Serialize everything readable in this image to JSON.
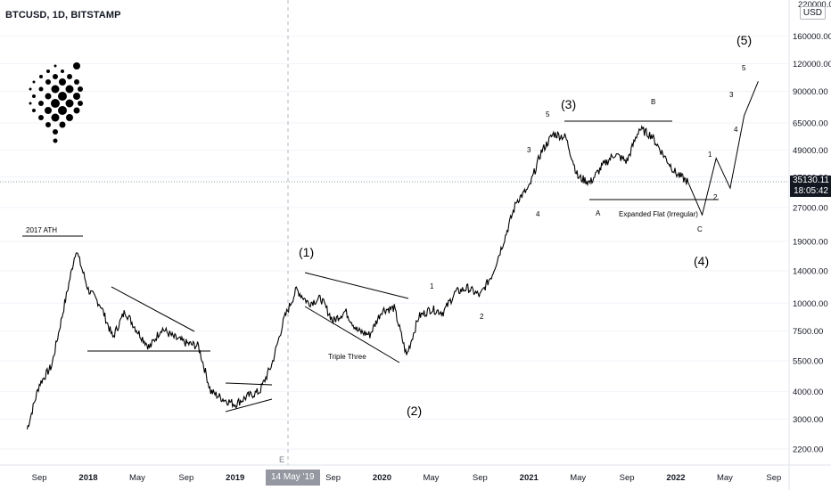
{
  "header": {
    "title": "BTCUSD, 1D, BITSTAMP",
    "currency": "USD"
  },
  "colors": {
    "price_line": "#000000",
    "grid": "#f0f3fa",
    "axis_text": "#131722",
    "tag_bg": "#131722",
    "crosshair": "#9598a1"
  },
  "price_axis": {
    "scale": "log",
    "top_clipped_label": "220000.00",
    "labels": [
      "160000.00",
      "120000.00",
      "90000.00",
      "65000.00",
      "49000.00",
      "37000.00",
      "27000.00",
      "19000.00",
      "14000.00",
      "10000.00",
      "7500.00",
      "5500.00",
      "4000.00",
      "3000.00",
      "2200.00"
    ],
    "current_price": "35130.11",
    "countdown": "18:05:42"
  },
  "time_axis": {
    "labels": [
      "Sep",
      "2018",
      "May",
      "Sep",
      "2019",
      "May",
      "Sep",
      "2020",
      "May",
      "Sep",
      "2021",
      "May",
      "Sep",
      "2022",
      "May",
      "Sep"
    ],
    "crosshair_date": "14 May '19",
    "event_marker": "E"
  },
  "annotations": {
    "ath": "2017 ATH",
    "wave1_major": "(1)",
    "wave2_major": "(2)",
    "wave3_major": "(3)",
    "wave4_major": "(4)",
    "wave5_major": "(5)",
    "triple_three": "Triple Three",
    "expanded_flat": "Expanded Flat (Irregular)",
    "sub1": "1",
    "sub2": "2",
    "sub4": "4",
    "sub3": "3",
    "sub5": "5",
    "A": "A",
    "B": "B",
    "C": "C",
    "proj1": "1",
    "proj2": "2",
    "proj3": "3",
    "proj4": "4",
    "proj5": "5"
  },
  "chart_data": {
    "type": "line",
    "title": "BTCUSD, 1D, BITSTAMP",
    "yscale": "log",
    "ylim": [
      1800,
      220000
    ],
    "x": [
      "2017-08",
      "2017-09",
      "2017-10",
      "2017-11",
      "2017-12",
      "2018-01",
      "2018-02",
      "2018-03",
      "2018-04",
      "2018-05",
      "2018-06",
      "2018-07",
      "2018-08",
      "2018-09",
      "2018-10",
      "2018-11",
      "2018-12",
      "2019-01",
      "2019-02",
      "2019-03",
      "2019-04",
      "2019-05",
      "2019-06",
      "2019-07",
      "2019-08",
      "2019-09",
      "2019-10",
      "2019-11",
      "2019-12",
      "2020-01",
      "2020-02",
      "2020-03",
      "2020-04",
      "2020-05",
      "2020-06",
      "2020-07",
      "2020-08",
      "2020-09",
      "2020-10",
      "2020-11",
      "2020-12",
      "2021-01",
      "2021-02",
      "2021-03",
      "2021-04",
      "2021-05",
      "2021-06",
      "2021-07",
      "2021-08",
      "2021-09",
      "2021-10",
      "2021-11",
      "2021-12",
      "2022-01",
      "2022-02"
    ],
    "series": [
      {
        "values": [
          2700,
          4300,
          5200,
          9500,
          17500,
          11500,
          9800,
          7000,
          9200,
          7500,
          6300,
          7700,
          7000,
          6600,
          6400,
          4000,
          3700,
          3500,
          3800,
          4000,
          5300,
          8500,
          11500,
          10000,
          10500,
          8300,
          9200,
          7500,
          7200,
          9300,
          9500,
          5800,
          8700,
          9400,
          9100,
          11200,
          11700,
          10800,
          13500,
          19500,
          29000,
          33000,
          48000,
          58000,
          56000,
          37000,
          35000,
          41500,
          47000,
          43500,
          61000,
          57000,
          46500,
          38500,
          35130
        ]
      }
    ],
    "projection": {
      "x": [
        "2022-02",
        "2022-03",
        "2022-04",
        "2022-05",
        "2022-06",
        "2022-07"
      ],
      "values": [
        35130,
        25000,
        45000,
        33000,
        70000,
        100000
      ]
    }
  }
}
